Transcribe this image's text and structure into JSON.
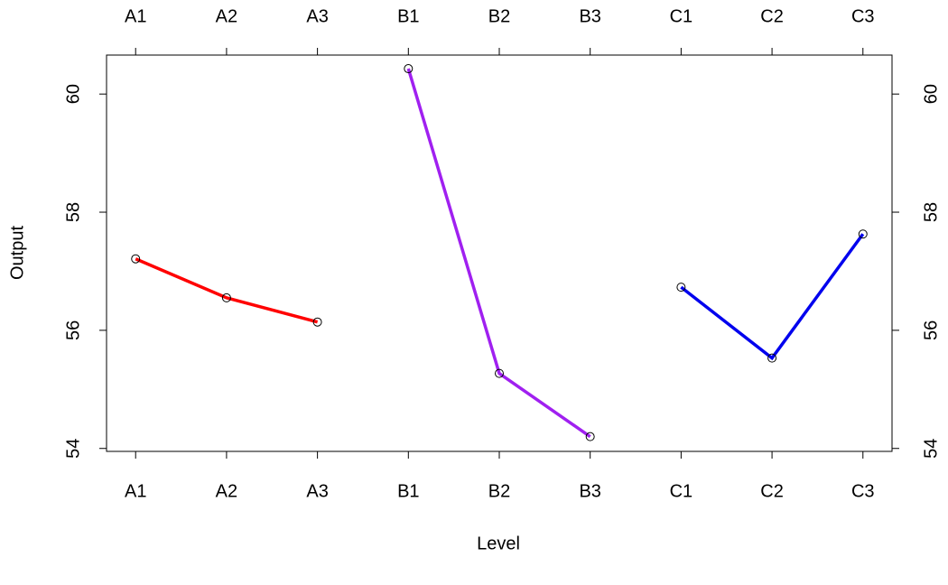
{
  "chart_data": {
    "type": "line",
    "x_label": "Level",
    "y_label": "Output",
    "categories": [
      "A1",
      "A2",
      "A3",
      "B1",
      "B2",
      "B3",
      "C1",
      "C2",
      "C3"
    ],
    "series": [
      {
        "color": "#ff0000",
        "values": [
          57.21,
          56.55,
          56.14,
          null,
          null,
          null,
          null,
          null,
          null
        ]
      },
      {
        "color": "#a020f0",
        "values": [
          null,
          null,
          null,
          60.43,
          55.27,
          54.2,
          null,
          null,
          null
        ]
      },
      {
        "color": "#0000ee",
        "values": [
          null,
          null,
          null,
          null,
          null,
          null,
          56.73,
          55.53,
          57.63
        ]
      }
    ],
    "ylim": [
      53.95,
      60.66
    ],
    "yticks": [
      54,
      56,
      58,
      60
    ]
  }
}
